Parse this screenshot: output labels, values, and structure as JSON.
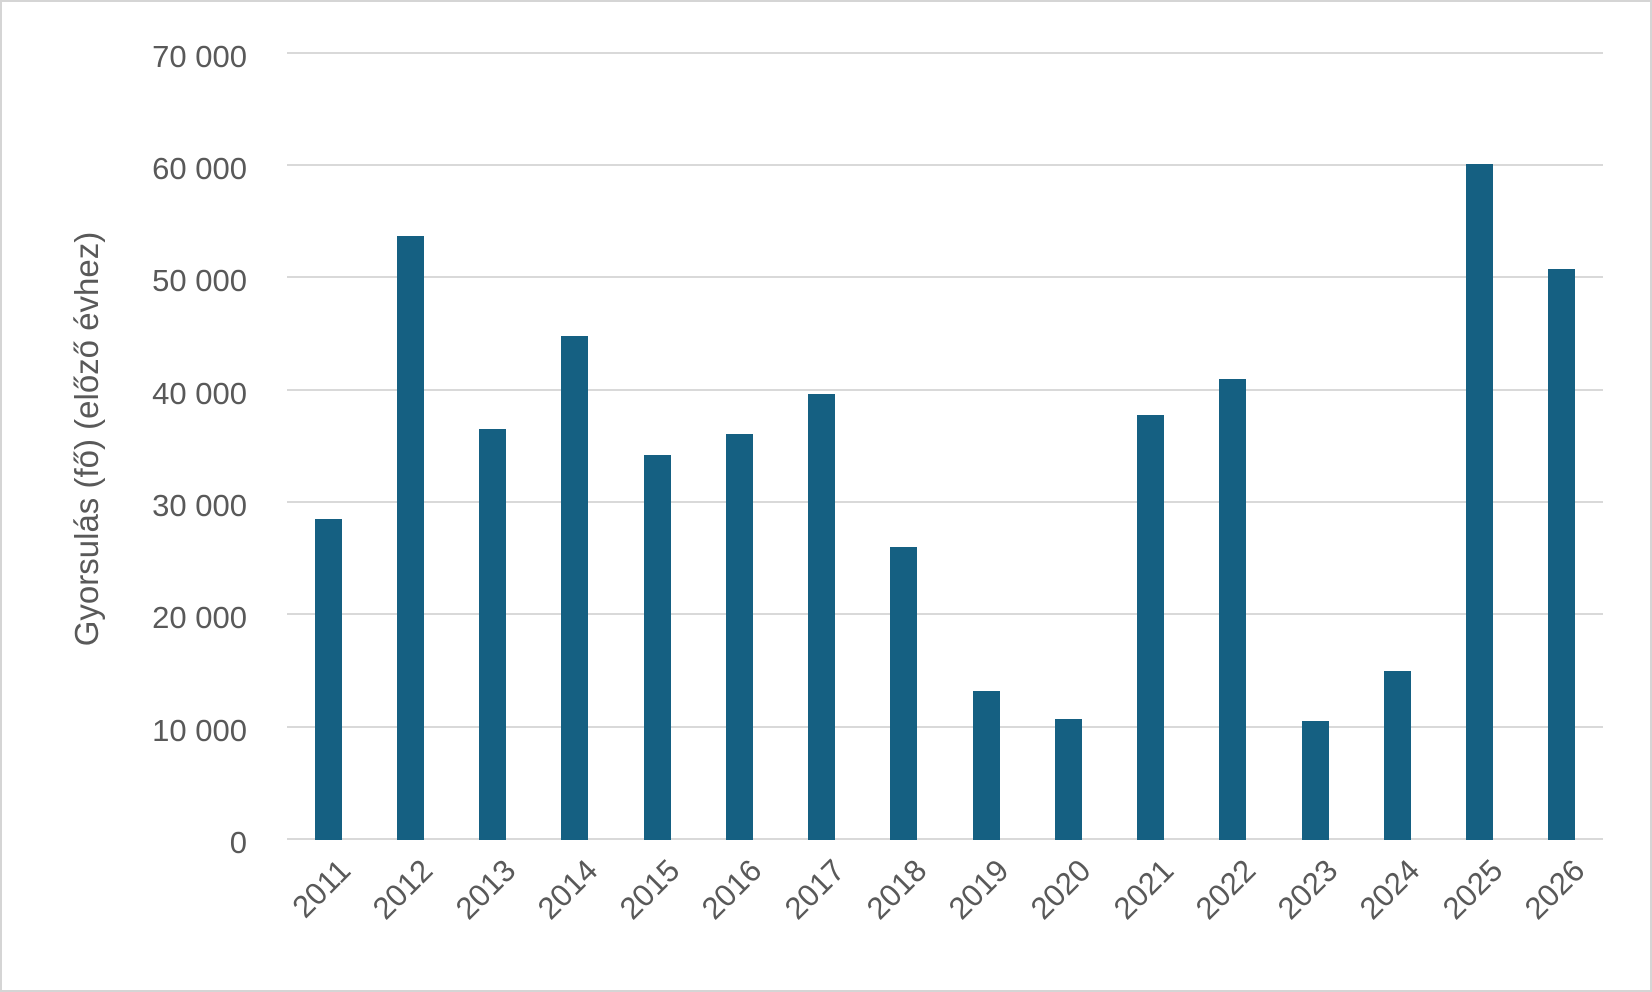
{
  "chart_data": {
    "type": "bar",
    "title": "",
    "xlabel": "",
    "ylabel": "Gyorsulás (fő) (előző évhez)",
    "categories": [
      "2011",
      "2012",
      "2013",
      "2014",
      "2015",
      "2016",
      "2017",
      "2018",
      "2019",
      "2020",
      "2021",
      "2022",
      "2023",
      "2024",
      "2025",
      "2026"
    ],
    "values": [
      28600,
      53800,
      36600,
      44900,
      34300,
      36100,
      39700,
      26100,
      13300,
      10800,
      37800,
      41000,
      10600,
      15000,
      60200,
      50800
    ],
    "ylim": [
      0,
      70000
    ],
    "ytick_step": 10000,
    "ytick_labels": [
      "0",
      "10 000",
      "20 000",
      "30 000",
      "40 000",
      "50 000",
      "60 000",
      "70 000"
    ],
    "grid": true,
    "legend": false,
    "bar_color": "#156082",
    "gridline_color": "#d9d9d9",
    "text_color": "#595959",
    "frame_border_color": "#d5d5d5",
    "background_color": "#ffffff"
  }
}
